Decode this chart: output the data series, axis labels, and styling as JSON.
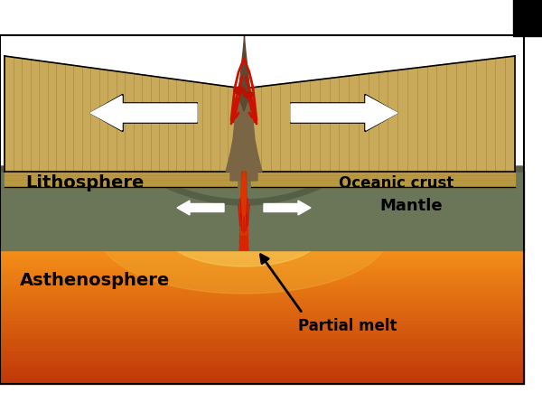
{
  "bg_color": "#ffffff",
  "labels": {
    "lithosphere": "Lithosphere",
    "oceanic_crust": "Oceanic crust",
    "mantle": "Mantle",
    "asthenosphere": "Asthenosphere",
    "partial_melt": "Partial melt"
  },
  "colors": {
    "crust_tan": "#c8aa5a",
    "crust_tan_dark": "#b89840",
    "crust_side": "#a08030",
    "mantle_green": "#6b7558",
    "mantle_dark": "#555f45",
    "asth_dark": "#c04010",
    "asth_mid": "#d05015",
    "asth_light": "#e87030",
    "asth_bright": "#f09040",
    "hot_yellow": "#f8d060",
    "hot_orange": "#f0a830",
    "magma_red": "#cc2000",
    "magma_orange": "#dd4400",
    "ridge_dark": "#5a4a30",
    "ridge_mid": "#7a6545",
    "white": "#ffffff",
    "black": "#000000",
    "stripe": "#b09040"
  },
  "figsize": [
    6.0,
    4.56
  ],
  "dpi": 100
}
